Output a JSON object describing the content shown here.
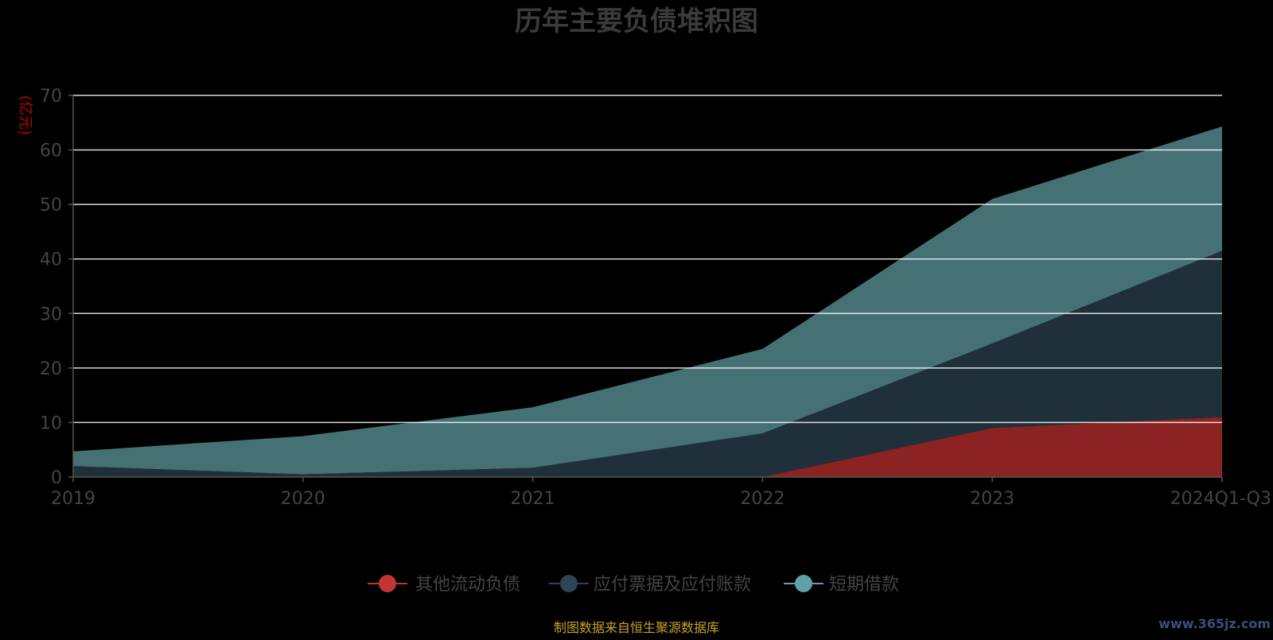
{
  "colors": {
    "background": "#000000",
    "gridline": "#ffffff",
    "axis": "#555555",
    "other_current_liabilities": "#8b2323",
    "other_current_liabilities_legend": "#c23531",
    "payables": "#20303a",
    "payables_legend": "#2f4554",
    "short_term_loans": "#457175",
    "short_term_loans_legend": "#61a0a8"
  },
  "footer": {
    "source": "制图数据来自恒生聚源数据库",
    "watermark": "www.365jz.com"
  },
  "chart_data": {
    "type": "area",
    "stacked": true,
    "title": "历年主要负债堆积图",
    "ylabel": "(亿元)",
    "xlabel": "",
    "categories": [
      "2019",
      "2020",
      "2021",
      "2022",
      "2023",
      "2024Q1-Q3"
    ],
    "ylim": [
      0,
      70
    ],
    "yticks": [
      0,
      10,
      20,
      30,
      40,
      50,
      60,
      70
    ],
    "grid": true,
    "legend_position": "bottom-center",
    "series": [
      {
        "name": "其他流动负债",
        "values": [
          0,
          0,
          0,
          0,
          9,
          11
        ],
        "color_key": "other_current_liabilities"
      },
      {
        "name": "应付票据及应付账款",
        "values": [
          2,
          0.5,
          1.7,
          8,
          15.5,
          30.5
        ],
        "color_key": "payables"
      },
      {
        "name": "短期借款",
        "values": [
          2.7,
          7,
          11.1,
          15.5,
          26.5,
          22.8
        ],
        "color_key": "short_term_loans"
      }
    ]
  }
}
